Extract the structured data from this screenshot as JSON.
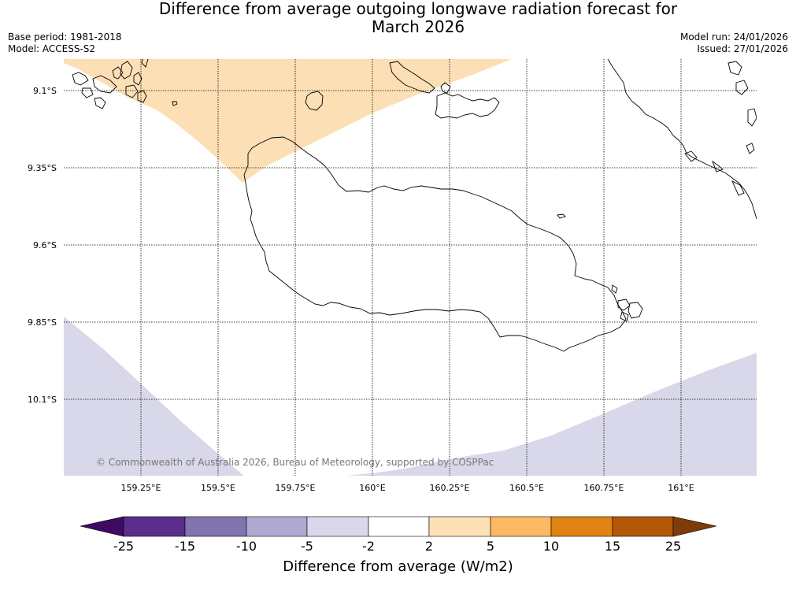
{
  "title": {
    "line1": "Difference from average outgoing longwave radiation forecast for",
    "line2": "March 2026"
  },
  "meta": {
    "base_period": "Base period: 1981-2018",
    "model": "Model: ACCESS-S2",
    "model_run": "Model run: 24/01/2026",
    "issued": "Issued: 27/01/2026"
  },
  "axes": {
    "lat_labels": [
      "9.1°S",
      "9.35°S",
      "9.6°S",
      "9.85°S",
      "10.1°S"
    ],
    "lon_labels": [
      "159.25°E",
      "159.5°E",
      "159.75°E",
      "160°E",
      "160.25°E",
      "160.5°E",
      "160.75°E",
      "161°E"
    ]
  },
  "map": {
    "positive_fill": "#fddfb5",
    "negative_fill": "#d8d8ea",
    "coast_color": "#000000",
    "grid_color": "#000000"
  },
  "copyright": "© Commonwealth of Australia 2026, Bureau of Meteorology, supported by COSPPac",
  "colorbar": {
    "ticks": [
      "-25",
      "-15",
      "-10",
      "-5",
      "-2",
      "2",
      "5",
      "10",
      "15",
      "25"
    ],
    "colors": [
      "#3f0a62",
      "#5a2d8c",
      "#8174af",
      "#b1a8d1",
      "#d8d8ea",
      "#ffffff",
      "#fee0b7",
      "#fdb863",
      "#e08214",
      "#b35806",
      "#7f3b08"
    ],
    "title": "Difference from average (W/m2)"
  }
}
